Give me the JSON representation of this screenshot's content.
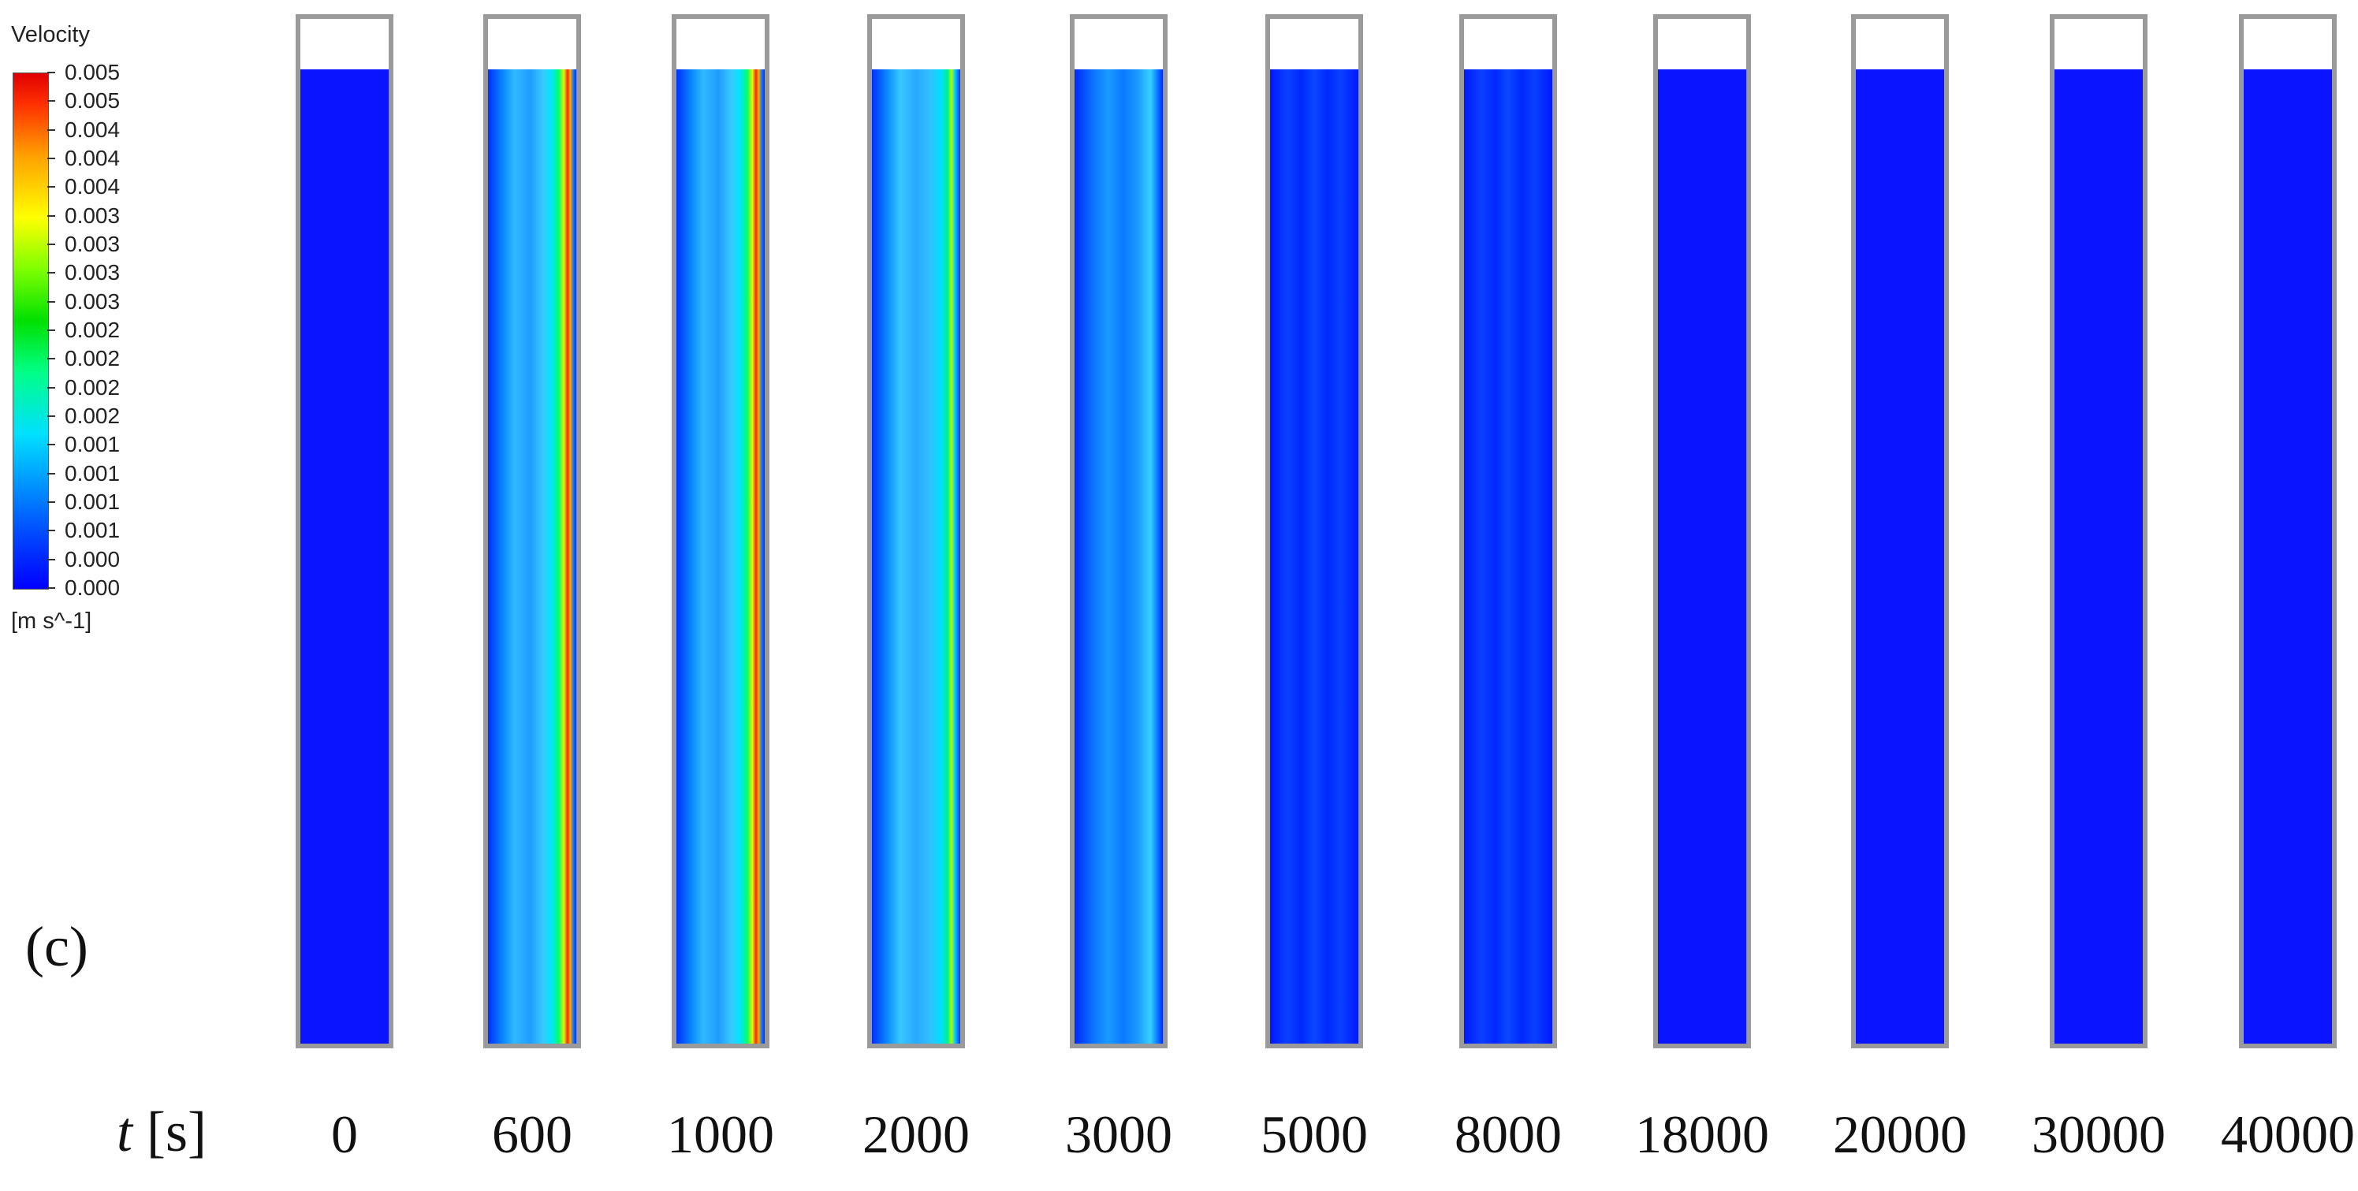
{
  "legend": {
    "title": "Velocity",
    "unit": "[m s^-1]",
    "tick_labels": [
      "0.005",
      "0.005",
      "0.004",
      "0.004",
      "0.004",
      "0.003",
      "0.003",
      "0.003",
      "0.003",
      "0.002",
      "0.002",
      "0.002",
      "0.002",
      "0.001",
      "0.001",
      "0.001",
      "0.001",
      "0.000",
      "0.000"
    ],
    "colors": [
      "#0000ff",
      "#00a2ff",
      "#00e0ff",
      "#00e000",
      "#ffff00",
      "#ffa000",
      "#e00000"
    ]
  },
  "panel_label": "(c)",
  "axis": {
    "variable": "t",
    "unit": "[s]"
  },
  "times": [
    {
      "label": "0"
    },
    {
      "label": "600"
    },
    {
      "label": "1000"
    },
    {
      "label": "2000"
    },
    {
      "label": "3000"
    },
    {
      "label": "5000"
    },
    {
      "label": "8000"
    },
    {
      "label": "18000"
    },
    {
      "label": "20000"
    },
    {
      "label": "30000"
    },
    {
      "label": "40000"
    }
  ]
}
